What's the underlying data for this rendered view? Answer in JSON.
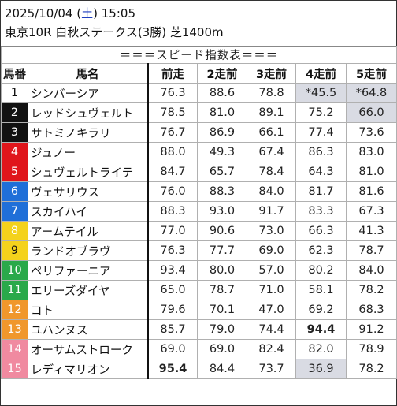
{
  "header": {
    "date": "2025/10/04",
    "dow_open": "(",
    "dow": "土",
    "dow_close": ")",
    "time": "15:05",
    "race": "東京10R 白秋ステークス(3勝) 芝1400m"
  },
  "banner": "＝＝＝スピード指数表＝＝＝",
  "columns": [
    "馬番",
    "馬名",
    "前走",
    "2走前",
    "3走前",
    "4走前",
    "5走前"
  ],
  "colors": {
    "frame_1": "#ffffff",
    "frame_2": "#111111",
    "frame_3": "#e0151b",
    "frame_4": "#1f6fd8",
    "frame_5": "#f4d21c",
    "frame_6": "#2aa94a",
    "frame_7": "#f0972c",
    "frame_8": "#f08aa0",
    "red_value": "#e0151b",
    "blue_value": "#1733e6",
    "grey_cell": "#d9dbe3"
  },
  "rows": [
    {
      "no": "1",
      "name": "シンバーシア",
      "v": [
        "76.3",
        "88.6",
        "78.8",
        "*45.5",
        "*64.8"
      ]
    },
    {
      "no": "2",
      "name": "レッドシュヴェルト",
      "v": [
        "78.5",
        "81.0",
        "89.1",
        "75.2",
        "66.0"
      ]
    },
    {
      "no": "3",
      "name": "サトミノキラリ",
      "v": [
        "76.7",
        "86.9",
        "66.1",
        "77.4",
        "73.6"
      ]
    },
    {
      "no": "4",
      "name": "ジュノー",
      "v": [
        "88.0",
        "49.3",
        "67.4",
        "86.3",
        "83.0"
      ]
    },
    {
      "no": "5",
      "name": "シュヴェルトライテ",
      "v": [
        "84.7",
        "65.7",
        "78.4",
        "64.3",
        "81.0"
      ]
    },
    {
      "no": "6",
      "name": "ヴェサリウス",
      "v": [
        "76.0",
        "88.3",
        "84.0",
        "81.7",
        "81.6"
      ]
    },
    {
      "no": "7",
      "name": "スカイハイ",
      "v": [
        "88.3",
        "93.0",
        "91.7",
        "83.3",
        "67.3"
      ]
    },
    {
      "no": "8",
      "name": "アームテイル",
      "v": [
        "77.0",
        "90.6",
        "73.0",
        "66.3",
        "41.3"
      ]
    },
    {
      "no": "9",
      "name": "ランドオブラヴ",
      "v": [
        "76.3",
        "77.7",
        "69.0",
        "62.3",
        "78.7"
      ]
    },
    {
      "no": "10",
      "name": "ペリファーニア",
      "v": [
        "93.4",
        "80.0",
        "57.0",
        "80.2",
        "84.0"
      ]
    },
    {
      "no": "11",
      "name": "エリーズダイヤ",
      "v": [
        "65.0",
        "78.7",
        "71.0",
        "58.1",
        "78.2"
      ]
    },
    {
      "no": "12",
      "name": "コト",
      "v": [
        "79.6",
        "70.1",
        "47.0",
        "69.2",
        "68.3"
      ]
    },
    {
      "no": "13",
      "name": "ユハンヌス",
      "v": [
        "85.7",
        "79.0",
        "74.4",
        "94.4",
        "91.2"
      ]
    },
    {
      "no": "14",
      "name": "オーサムストローク",
      "v": [
        "69.0",
        "69.0",
        "82.4",
        "82.0",
        "78.9"
      ]
    },
    {
      "no": "15",
      "name": "レディマリオン",
      "v": [
        "95.4",
        "84.4",
        "73.7",
        "36.9",
        "78.2"
      ]
    }
  ]
}
